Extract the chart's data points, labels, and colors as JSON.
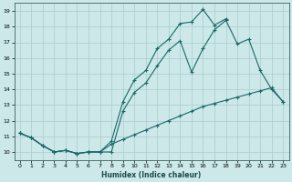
{
  "title": "",
  "xlabel": "Humidex (Indice chaleur)",
  "background_color": "#cce8e8",
  "grid_color": "#aacccc",
  "line_color": "#1a6868",
  "xlim": [
    -0.5,
    23.5
  ],
  "ylim": [
    9.5,
    19.5
  ],
  "xticks": [
    0,
    1,
    2,
    3,
    4,
    5,
    6,
    7,
    8,
    9,
    10,
    11,
    12,
    13,
    14,
    15,
    16,
    17,
    18,
    19,
    20,
    21,
    22,
    23
  ],
  "yticks": [
    10,
    11,
    12,
    13,
    14,
    15,
    16,
    17,
    18,
    19
  ],
  "line_top_x": [
    0,
    1,
    2,
    3,
    4,
    5,
    6,
    7,
    8,
    9,
    10,
    11,
    12,
    13,
    14,
    15,
    16,
    17,
    18,
    19,
    20,
    21,
    22,
    23
  ],
  "line_top_y": [
    11.2,
    10.9,
    10.4,
    10.0,
    10.1,
    9.9,
    10.0,
    10.0,
    10.7,
    13.2,
    14.6,
    15.2,
    16.6,
    17.2,
    18.2,
    18.3,
    19.1,
    18.1,
    18.5,
    null,
    null,
    null,
    null,
    null
  ],
  "line_mid_x": [
    0,
    1,
    2,
    3,
    4,
    5,
    6,
    7,
    8,
    9,
    10,
    11,
    12,
    13,
    14,
    15,
    16,
    17,
    18,
    19,
    20,
    21,
    22,
    23
  ],
  "line_mid_y": [
    11.2,
    10.9,
    10.4,
    10.0,
    10.1,
    9.9,
    10.0,
    10.0,
    10.0,
    12.6,
    13.8,
    14.4,
    15.5,
    16.5,
    17.1,
    15.1,
    16.6,
    17.8,
    18.4,
    16.9,
    17.2,
    15.2,
    14.0,
    13.2
  ],
  "line_bot_x": [
    0,
    1,
    2,
    3,
    4,
    5,
    6,
    7,
    8,
    9,
    10,
    11,
    12,
    13,
    14,
    15,
    16,
    17,
    18,
    19,
    20,
    21,
    22,
    23
  ],
  "line_bot_y": [
    11.2,
    10.9,
    10.4,
    10.0,
    10.1,
    9.9,
    10.0,
    10.0,
    10.5,
    10.8,
    11.1,
    11.4,
    11.7,
    12.0,
    12.3,
    12.6,
    12.9,
    13.1,
    13.3,
    13.5,
    13.7,
    13.9,
    14.1,
    13.2
  ]
}
